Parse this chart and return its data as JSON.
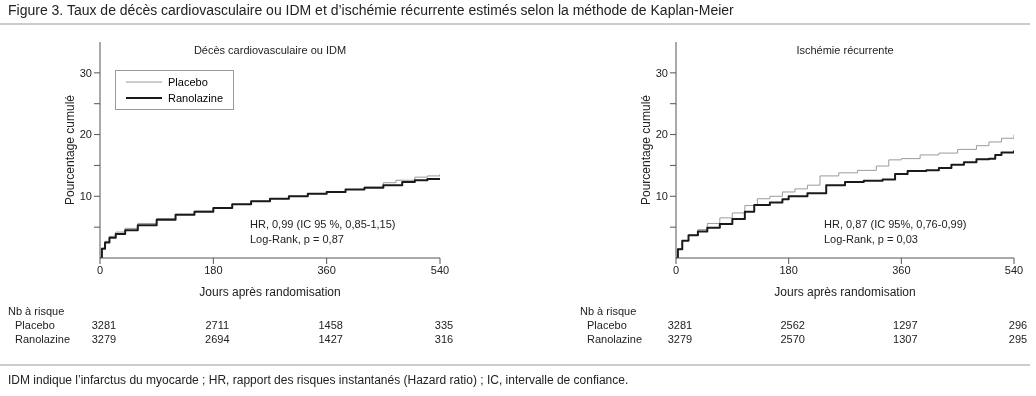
{
  "chart_data": [
    {
      "type": "step",
      "title": "Figure 3. Taux de décès cardiovasculaire ou IDM et d’ischémie récurrente estimés selon la méthode de Kaplan-Meier",
      "subtitle": "Décès cardiovasculaire ou IDM",
      "xlabel": "Jours après randomisation",
      "ylabel": "Pourcentage cumulé",
      "xlim": [
        0,
        540
      ],
      "xticks": [
        0,
        180,
        360,
        540
      ],
      "ylim": [
        0,
        35
      ],
      "yticks": [
        {
          "value": 5,
          "label": null
        },
        10,
        {
          "value": 15,
          "label": null
        },
        20,
        {
          "value": 25,
          "label": null
        },
        30
      ],
      "legend": "top left",
      "marker": "none",
      "line_style": "solid",
      "series": [
        {
          "name": "Placebo",
          "color": "#9a9a9a",
          "x": [
            0,
            3,
            8,
            15,
            25,
            40,
            60,
            90,
            120,
            150,
            180,
            210,
            240,
            270,
            300,
            330,
            360,
            390,
            420,
            450,
            470,
            500,
            520,
            540
          ],
          "values": [
            0,
            1.6,
            2.7,
            3.5,
            4.2,
            4.8,
            5.6,
            6.4,
            7.1,
            7.6,
            8.1,
            8.7,
            9.2,
            9.6,
            10.0,
            10.4,
            10.7,
            11.1,
            11.5,
            12.2,
            12.6,
            13.1,
            13.3,
            13.6
          ]
        },
        {
          "name": "Ranolazine",
          "color": "#1a1a1a",
          "x": [
            0,
            3,
            8,
            15,
            25,
            40,
            60,
            90,
            120,
            150,
            180,
            210,
            240,
            270,
            300,
            330,
            360,
            390,
            420,
            450,
            480,
            500,
            520,
            540
          ],
          "values": [
            0,
            1.5,
            2.5,
            3.3,
            3.9,
            4.5,
            5.3,
            6.2,
            7.0,
            7.5,
            8.1,
            8.7,
            9.2,
            9.6,
            10.0,
            10.4,
            10.7,
            11.1,
            11.4,
            11.8,
            12.3,
            12.6,
            12.8,
            12.9
          ]
        }
      ],
      "annotations": [
        "HR, 0,99 (IC 95 %, 0,85-1,15)",
        "Log-Rank, p = 0,87",
        "Nb à risque",
        "Placebo",
        "3281",
        "2711",
        "1458",
        "335",
        "Ranolazine",
        "3279",
        "2694",
        "1427",
        "316"
      ]
    },
    {
      "type": "step",
      "subtitle": "Ischémie récurrente",
      "xlabel": "Jours après randomisation",
      "ylabel": "Pourcentage cumulé",
      "xlim": [
        0,
        540
      ],
      "xticks": [
        0,
        180,
        360,
        540
      ],
      "ylim": [
        0,
        35
      ],
      "yticks": [
        {
          "value": 5,
          "label": null
        },
        10,
        {
          "value": 15,
          "label": null
        },
        20,
        {
          "value": 25,
          "label": null
        },
        30
      ],
      "marker": "none",
      "line_style": "solid",
      "series": [
        {
          "color": "#9a9a9a",
          "x": [
            0,
            3,
            10,
            20,
            35,
            50,
            70,
            90,
            110,
            130,
            150,
            170,
            190,
            210,
            230,
            260,
            290,
            320,
            340,
            360,
            390,
            420,
            450,
            480,
            500,
            520,
            540
          ],
          "values": [
            0,
            1.5,
            2.8,
            3.7,
            4.6,
            5.6,
            6.5,
            7.3,
            8.5,
            9.6,
            10.0,
            10.7,
            11.2,
            11.8,
            13.3,
            13.8,
            14.2,
            14.9,
            15.9,
            16.1,
            16.7,
            17.0,
            17.6,
            18.2,
            18.8,
            19.4,
            20.0
          ]
        },
        {
          "color": "#1a1a1a",
          "x": [
            0,
            3,
            10,
            20,
            35,
            50,
            70,
            90,
            110,
            125,
            150,
            170,
            180,
            210,
            240,
            270,
            300,
            330,
            350,
            370,
            400,
            420,
            440,
            460,
            480,
            500,
            510,
            520,
            540
          ],
          "values": [
            0,
            1.4,
            2.8,
            3.7,
            4.3,
            4.9,
            5.5,
            6.3,
            7.5,
            8.6,
            9.0,
            9.5,
            10.0,
            10.5,
            11.8,
            12.3,
            12.5,
            12.7,
            13.6,
            14.1,
            14.2,
            14.6,
            15.1,
            15.5,
            16.0,
            16.1,
            16.7,
            17.1,
            17.4
          ]
        }
      ],
      "annotations": [
        "HR, 0,87 (IC 95%, 0,76-0,99)",
        "Log-Rank, p = 0,03",
        "Nb à risque",
        "Placebo",
        "3281",
        "2562",
        "1297",
        "296",
        "Ranolazine",
        "3279",
        "2570",
        "1307",
        "295",
        "IDM indique l’infarctus du myocarde ; HR, rapport des risques instantanés (Hazard ratio) ; IC, intervalle de confiance."
      ]
    }
  ]
}
